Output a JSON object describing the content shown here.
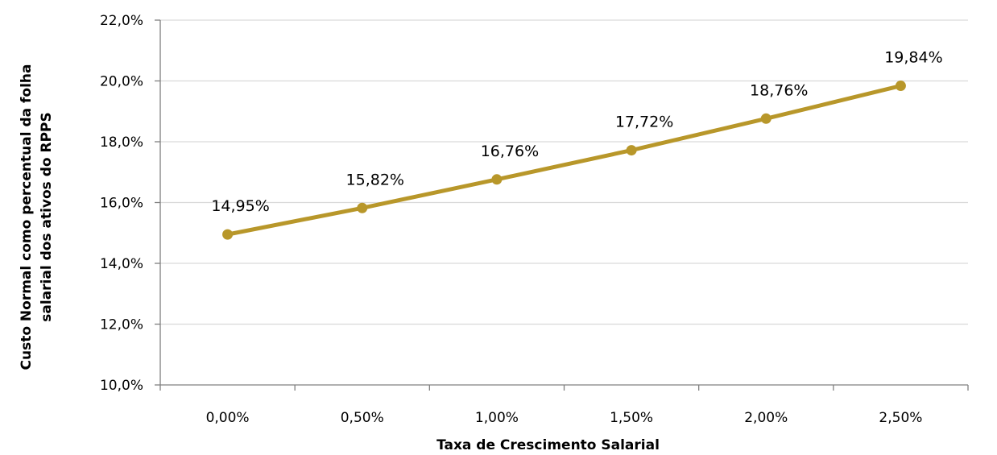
{
  "chart_data": {
    "type": "line",
    "title": "",
    "xlabel": "Taxa de Crescimento Salarial",
    "ylabel_lines": [
      "Custo Normal como percentual da folha",
      "salarial dos ativos do RPPS"
    ],
    "categories": [
      "0,00%",
      "0,50%",
      "1,00%",
      "1,50%",
      "2,00%",
      "2,50%"
    ],
    "series": [
      {
        "values": [
          14.95,
          15.82,
          16.76,
          17.72,
          18.76,
          19.84
        ],
        "labels": [
          "14,95%",
          "15,82%",
          "16,76%",
          "17,72%",
          "18,76%",
          "19,84%"
        ],
        "color": "#B8972A"
      }
    ],
    "ylim": [
      10,
      22
    ],
    "yticks": [
      10,
      12,
      14,
      16,
      18,
      20,
      22
    ],
    "ytick_labels": [
      "10,0%",
      "12,0%",
      "14,0%",
      "16,0%",
      "18,0%",
      "20,0%",
      "22,0%"
    ],
    "grid": true,
    "legend": "none",
    "gridline_color": "#D9D9D9",
    "axis_color": "#808080"
  }
}
